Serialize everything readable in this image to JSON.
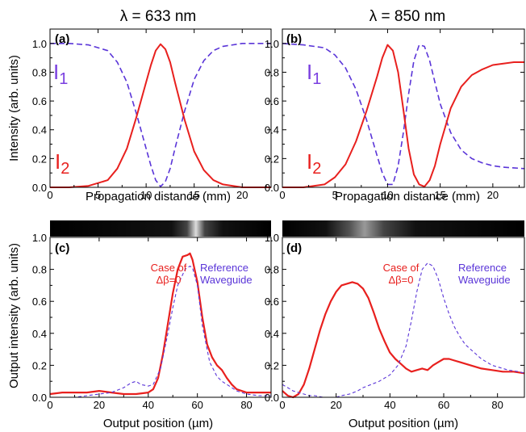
{
  "chart_data": [
    {
      "id": "a",
      "type": "line",
      "panel_label": "(a)",
      "title": "λ = 633 nm",
      "xlabel": "Propagation distance (mm)",
      "ylabel": "Intensity (arb. units)",
      "xlim": [
        0,
        23
      ],
      "ylim": [
        0,
        1.1
      ],
      "xticks": [
        0,
        5,
        10,
        15,
        20
      ],
      "yticks": [
        0.0,
        0.2,
        0.4,
        0.6,
        0.8,
        1.0
      ],
      "curve_labels": [
        {
          "text": "I",
          "sub": "1",
          "color": "#7a3fe0"
        },
        {
          "text": "I",
          "sub": "2",
          "color": "#e8201e"
        }
      ],
      "series": [
        {
          "style": "dashed",
          "color": "#5a35d8",
          "x": [
            0,
            2,
            4,
            6,
            7,
            8,
            9,
            10,
            10.5,
            11,
            11.5,
            12,
            12.5,
            13,
            14,
            15,
            16,
            17,
            18,
            20,
            22,
            23
          ],
          "y": [
            1.0,
            1.0,
            0.99,
            0.95,
            0.87,
            0.73,
            0.51,
            0.27,
            0.15,
            0.05,
            0.005,
            0.04,
            0.13,
            0.27,
            0.53,
            0.75,
            0.88,
            0.95,
            0.98,
            1.0,
            1.0,
            1.0
          ]
        },
        {
          "style": "solid",
          "color": "#e8201e",
          "x": [
            0,
            2,
            4,
            6,
            7,
            8,
            9,
            10,
            10.5,
            11,
            11.5,
            12,
            12.5,
            13,
            14,
            15,
            16,
            17,
            18,
            20,
            22,
            23
          ],
          "y": [
            0.0,
            0.0,
            0.01,
            0.05,
            0.13,
            0.27,
            0.49,
            0.73,
            0.85,
            0.95,
            0.995,
            0.96,
            0.87,
            0.73,
            0.47,
            0.25,
            0.12,
            0.05,
            0.02,
            0.0,
            0.0,
            0.0
          ]
        }
      ]
    },
    {
      "id": "b",
      "type": "line",
      "panel_label": "(b)",
      "title": "λ = 850 nm",
      "xlabel": "Propagation distance (mm)",
      "ylabel": "",
      "xlim": [
        0,
        23
      ],
      "ylim": [
        0,
        1.1
      ],
      "xticks": [
        0,
        5,
        10,
        15,
        20
      ],
      "yticks": [
        0.0,
        0.2,
        0.4,
        0.6,
        0.8,
        1.0
      ],
      "curve_labels": [
        {
          "text": "I",
          "sub": "1",
          "color": "#7a3fe0"
        },
        {
          "text": "I",
          "sub": "2",
          "color": "#e8201e"
        }
      ],
      "series": [
        {
          "style": "dashed",
          "color": "#5a35d8",
          "x": [
            0,
            2,
            4,
            5,
            6,
            7,
            8,
            9,
            9.5,
            10,
            10.5,
            11,
            11.5,
            12,
            12.5,
            13,
            13.5,
            14,
            14.5,
            15,
            16,
            17,
            18,
            19,
            20,
            21,
            22,
            23
          ],
          "y": [
            1.0,
            0.99,
            0.97,
            0.92,
            0.83,
            0.68,
            0.47,
            0.22,
            0.1,
            0.02,
            0.02,
            0.15,
            0.38,
            0.65,
            0.88,
            0.99,
            0.98,
            0.88,
            0.73,
            0.58,
            0.38,
            0.26,
            0.2,
            0.17,
            0.15,
            0.14,
            0.135,
            0.13
          ]
        },
        {
          "style": "solid",
          "color": "#e8201e",
          "x": [
            0,
            2,
            4,
            5,
            6,
            7,
            8,
            9,
            9.5,
            10,
            10.5,
            11,
            11.5,
            12,
            12.5,
            13,
            13.5,
            14,
            14.5,
            15,
            16,
            17,
            18,
            19,
            20,
            21,
            22,
            23
          ],
          "y": [
            0.0,
            0.0,
            0.02,
            0.07,
            0.16,
            0.32,
            0.53,
            0.77,
            0.9,
            0.99,
            0.95,
            0.8,
            0.54,
            0.27,
            0.09,
            0.02,
            0.005,
            0.05,
            0.15,
            0.3,
            0.55,
            0.7,
            0.78,
            0.82,
            0.85,
            0.86,
            0.87,
            0.87
          ]
        }
      ]
    },
    {
      "id": "c",
      "type": "line",
      "panel_label": "(c)",
      "xlabel": "Output position (µm)",
      "ylabel": "Output intensity (arb. units)",
      "xlim": [
        0,
        90
      ],
      "ylim": [
        0,
        1.0
      ],
      "xticks": [
        0,
        20,
        40,
        60,
        80
      ],
      "yticks": [
        0.0,
        0.2,
        0.4,
        0.6,
        0.8,
        1.0
      ],
      "strip_center": 57,
      "annotations": [
        {
          "lines": [
            "Case of",
            "Δβ=0"
          ],
          "color": "#e8201e"
        },
        {
          "lines": [
            "Reference",
            "Waveguide"
          ],
          "color": "#5a35d8"
        }
      ],
      "series": [
        {
          "style": "solid",
          "color": "#e8201e",
          "x": [
            0,
            5,
            10,
            15,
            20,
            25,
            30,
            35,
            40,
            42,
            44,
            46,
            48,
            50,
            52,
            54,
            56,
            57,
            58,
            60,
            62,
            64,
            66,
            68,
            70,
            72,
            74,
            76,
            78,
            80,
            85,
            90
          ],
          "y": [
            0.02,
            0.03,
            0.03,
            0.03,
            0.04,
            0.03,
            0.02,
            0.02,
            0.03,
            0.05,
            0.12,
            0.27,
            0.46,
            0.65,
            0.8,
            0.88,
            0.89,
            0.9,
            0.86,
            0.72,
            0.5,
            0.33,
            0.25,
            0.2,
            0.17,
            0.12,
            0.08,
            0.05,
            0.04,
            0.03,
            0.03,
            0.03
          ]
        },
        {
          "style": "dashed",
          "color": "#5a35d8",
          "x": [
            0,
            5,
            10,
            15,
            20,
            25,
            30,
            33,
            35,
            37,
            40,
            42,
            45,
            48,
            50,
            52,
            55,
            57,
            58,
            60,
            62,
            65,
            68,
            70,
            73,
            76,
            80,
            85,
            90
          ],
          "y": [
            0.0,
            0.0,
            0.0,
            0.01,
            0.02,
            0.03,
            0.06,
            0.09,
            0.1,
            0.08,
            0.07,
            0.08,
            0.18,
            0.4,
            0.56,
            0.7,
            0.8,
            0.82,
            0.81,
            0.7,
            0.45,
            0.22,
            0.13,
            0.1,
            0.07,
            0.04,
            0.02,
            0.01,
            0.01
          ]
        }
      ]
    },
    {
      "id": "d",
      "type": "line",
      "panel_label": "(d)",
      "xlabel": "Output position (µm)",
      "ylabel": "",
      "xlim": [
        0,
        90
      ],
      "ylim": [
        0,
        1.0
      ],
      "xticks": [
        0,
        20,
        40,
        60,
        80
      ],
      "yticks": [
        0.0,
        0.2,
        0.4,
        0.6,
        0.8,
        1.0
      ],
      "strip_center": 28,
      "annotations": [
        {
          "lines": [
            "Case of",
            "Δβ=0"
          ],
          "color": "#e8201e"
        },
        {
          "lines": [
            "Reference",
            "Waveguide"
          ],
          "color": "#5a35d8"
        }
      ],
      "series": [
        {
          "style": "solid",
          "color": "#e8201e",
          "x": [
            0,
            2,
            4,
            6,
            8,
            10,
            12,
            14,
            16,
            18,
            20,
            22,
            24,
            26,
            28,
            30,
            32,
            34,
            36,
            38,
            40,
            42,
            44,
            46,
            48,
            50,
            52,
            54,
            56,
            58,
            60,
            62,
            64,
            66,
            70,
            74,
            78,
            82,
            86,
            90
          ],
          "y": [
            0.04,
            0.01,
            0.0,
            0.02,
            0.08,
            0.18,
            0.3,
            0.42,
            0.52,
            0.6,
            0.66,
            0.7,
            0.71,
            0.72,
            0.71,
            0.68,
            0.62,
            0.53,
            0.43,
            0.35,
            0.28,
            0.24,
            0.21,
            0.18,
            0.16,
            0.17,
            0.18,
            0.17,
            0.2,
            0.22,
            0.24,
            0.24,
            0.23,
            0.22,
            0.2,
            0.18,
            0.17,
            0.16,
            0.16,
            0.15
          ]
        },
        {
          "style": "dashed",
          "color": "#5a35d8",
          "x": [
            0,
            2,
            4,
            6,
            8,
            10,
            12,
            15,
            18,
            20,
            22,
            25,
            28,
            30,
            33,
            36,
            40,
            43,
            46,
            48,
            50,
            52,
            54,
            56,
            58,
            60,
            62,
            64,
            66,
            68,
            70,
            72,
            74,
            76,
            78,
            80,
            84,
            88,
            90
          ],
          "y": [
            0.08,
            0.06,
            0.04,
            0.03,
            0.02,
            0.01,
            0.01,
            0.0,
            0.0,
            0.0,
            0.01,
            0.02,
            0.04,
            0.06,
            0.08,
            0.1,
            0.14,
            0.2,
            0.32,
            0.48,
            0.66,
            0.8,
            0.84,
            0.82,
            0.74,
            0.62,
            0.52,
            0.44,
            0.38,
            0.33,
            0.3,
            0.27,
            0.24,
            0.22,
            0.2,
            0.19,
            0.17,
            0.16,
            0.15
          ]
        }
      ]
    }
  ]
}
